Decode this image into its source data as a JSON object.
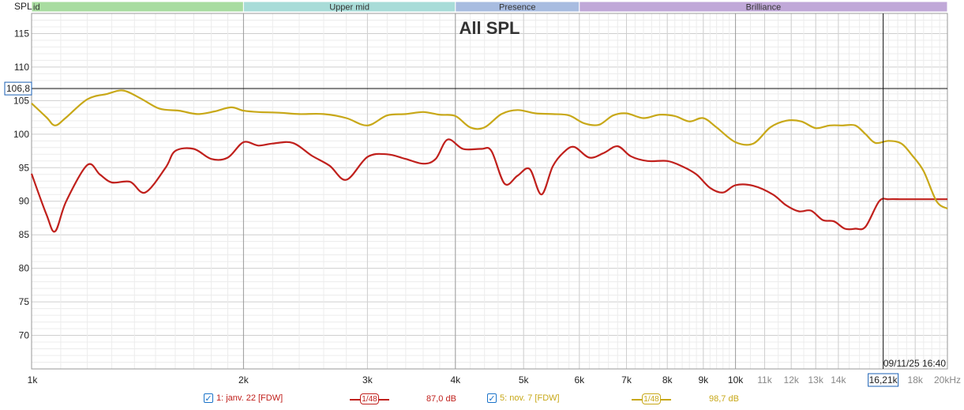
{
  "chart_data": {
    "type": "line",
    "title": "All SPL",
    "ylabel": "SPL",
    "xunit": "kHz",
    "xscale": "log",
    "xlim": [
      1000,
      20000
    ],
    "ylim": [
      65,
      118
    ],
    "grid": true,
    "yticks": [
      "115",
      "110",
      "105",
      "100",
      "95",
      "90",
      "85",
      "80",
      "75",
      "70"
    ],
    "ytick_values": [
      115,
      110,
      105,
      100,
      95,
      90,
      85,
      80,
      75,
      70
    ],
    "xticks": [
      {
        "v": 1000,
        "label": "1k",
        "major": true
      },
      {
        "v": 2000,
        "label": "2k",
        "major": true
      },
      {
        "v": 3000,
        "label": "3k",
        "major": true
      },
      {
        "v": 4000,
        "label": "4k",
        "major": true
      },
      {
        "v": 5000,
        "label": "5k",
        "major": true
      },
      {
        "v": 6000,
        "label": "6k",
        "major": true
      },
      {
        "v": 7000,
        "label": "7k",
        "major": true
      },
      {
        "v": 8000,
        "label": "8k",
        "major": true
      },
      {
        "v": 9000,
        "label": "9k",
        "major": true
      },
      {
        "v": 10000,
        "label": "10k",
        "major": true
      },
      {
        "v": 11000,
        "label": "11k",
        "major": false
      },
      {
        "v": 12000,
        "label": "12k",
        "major": false
      },
      {
        "v": 13000,
        "label": "13k",
        "major": false
      },
      {
        "v": 14000,
        "label": "14k",
        "major": false
      },
      {
        "v": 18000,
        "label": "18k",
        "major": false
      },
      {
        "v": 20000,
        "label": "20kHz",
        "major": false
      }
    ],
    "bands": [
      {
        "name": "id",
        "from": 1000,
        "to": 2000,
        "color": "#a8dca0"
      },
      {
        "name": "Upper mid",
        "from": 2000,
        "to": 4000,
        "color": "#a8dcd8"
      },
      {
        "name": "Presence",
        "from": 4000,
        "to": 6000,
        "color": "#a8bce0"
      },
      {
        "name": "Brilliance",
        "from": 6000,
        "to": 20000,
        "color": "#c0a8d8"
      }
    ],
    "cursor": {
      "x": 16210,
      "x_label": "16,21k",
      "y": 106.8,
      "y_label": "106,8"
    },
    "timestamp": "09/11/25 16:40",
    "series": [
      {
        "name": "1: janv. 22 [FDW]",
        "color": "#c0201c",
        "smoothing": "1/48",
        "readout": "87,0 dB",
        "x": [
          1000,
          1050,
          1080,
          1120,
          1200,
          1250,
          1300,
          1380,
          1450,
          1550,
          1600,
          1700,
          1800,
          1900,
          2000,
          2100,
          2200,
          2350,
          2500,
          2650,
          2800,
          3000,
          3200,
          3400,
          3600,
          3750,
          3900,
          4100,
          4350,
          4500,
          4700,
          4900,
          5100,
          5300,
          5500,
          5700,
          5900,
          6200,
          6500,
          6800,
          7100,
          7500,
          8000,
          8400,
          8800,
          9200,
          9600,
          10000,
          10600,
          11300,
          11800,
          12300,
          12800,
          13300,
          13800,
          14300,
          14800,
          15300,
          16000,
          16500,
          17200,
          17800,
          18500,
          19300,
          20000
        ],
        "y": [
          94.1,
          88.0,
          85.5,
          90.0,
          95.4,
          94.0,
          92.8,
          92.9,
          91.3,
          95.0,
          97.5,
          97.8,
          96.3,
          96.5,
          98.8,
          98.3,
          98.6,
          98.7,
          96.8,
          95.3,
          93.2,
          96.6,
          97.0,
          96.3,
          95.6,
          96.3,
          99.2,
          97.8,
          97.8,
          97.5,
          92.6,
          93.8,
          94.8,
          91.0,
          95.2,
          97.3,
          98.1,
          96.5,
          97.2,
          98.2,
          96.7,
          96.0,
          96.0,
          95.2,
          94.0,
          92.0,
          91.3,
          92.4,
          92.3,
          91.0,
          89.4,
          88.5,
          88.6,
          87.2,
          87.0,
          85.9,
          85.9,
          86.2,
          90.0,
          90.3,
          90.3,
          90.3,
          90.3,
          90.3,
          90.3
        ]
      },
      {
        "name": "5: nov. 7 [FDW]",
        "color": "#c8a818",
        "smoothing": "1/48",
        "readout": "98,7 dB",
        "x": [
          1000,
          1050,
          1080,
          1120,
          1200,
          1280,
          1350,
          1430,
          1520,
          1620,
          1720,
          1820,
          1920,
          2000,
          2100,
          2250,
          2400,
          2600,
          2800,
          3000,
          3200,
          3400,
          3600,
          3800,
          4000,
          4200,
          4400,
          4650,
          4900,
          5200,
          5500,
          5800,
          6100,
          6400,
          6700,
          7000,
          7400,
          7800,
          8200,
          8600,
          9000,
          9400,
          10000,
          10600,
          11200,
          11800,
          12400,
          13000,
          13600,
          14200,
          14800,
          15300,
          15800,
          16500,
          17200,
          17800,
          18500,
          19300,
          20000
        ],
        "y": [
          104.6,
          102.5,
          101.3,
          102.5,
          105.2,
          106.0,
          106.5,
          105.3,
          103.8,
          103.5,
          103.0,
          103.4,
          104.0,
          103.5,
          103.3,
          103.2,
          103.0,
          103.0,
          102.4,
          101.3,
          102.8,
          103.0,
          103.3,
          102.9,
          102.7,
          101.0,
          101.0,
          103.0,
          103.6,
          103.1,
          103.0,
          102.8,
          101.6,
          101.4,
          102.8,
          103.1,
          102.4,
          102.9,
          102.7,
          101.9,
          102.4,
          101.0,
          98.8,
          98.6,
          101.0,
          102.0,
          101.9,
          100.9,
          101.3,
          101.3,
          101.3,
          100.0,
          98.7,
          99.0,
          98.6,
          96.9,
          94.5,
          90.0,
          88.9
        ]
      }
    ]
  }
}
